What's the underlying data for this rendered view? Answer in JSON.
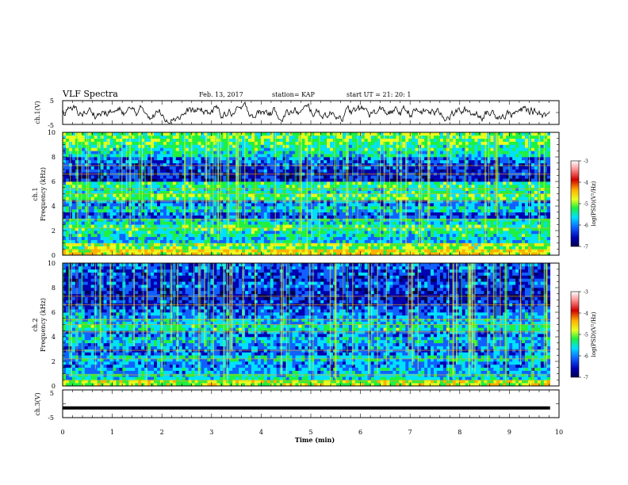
{
  "header": {
    "title": "VLF Spectra",
    "date": "Feb. 13, 2017",
    "station": "station= KAP",
    "start_ut": "start  UT =   21: 20: 1"
  },
  "chart_data": [
    {
      "type": "line",
      "name": "ch1-waveform",
      "ylabel": "ch.1(V)",
      "ylim": [
        -5,
        5
      ],
      "ytick_labels": [
        "-5",
        "5"
      ],
      "xlim": [
        0,
        10
      ],
      "approx_level_V": 0,
      "approx_amplitude_V": 2.5
    },
    {
      "type": "heatmap",
      "name": "ch1-spectrogram",
      "ylabel": "ch.1\nFrequency (kHz)",
      "ylim": [
        0,
        10
      ],
      "ytick_labels": [
        "0",
        "2",
        "4",
        "6",
        "8",
        "10"
      ],
      "xlim": [
        0,
        9.82
      ],
      "colorbar": {
        "label": "log(PSD)(V²/Hz)",
        "range": [
          -7,
          -3
        ],
        "tick_labels": [
          "-3",
          "-4",
          "-5",
          "-6",
          "-7"
        ],
        "colormap": [
          "#ffffff",
          "#d00000",
          "#ffb000",
          "#e8ff20",
          "#20f040",
          "#00e0ff",
          "#1060ff",
          "#0000b0",
          "#000050"
        ]
      },
      "bands_kHz_approx_logpsd": [
        [
          0.0,
          -4.4
        ],
        [
          0.5,
          -4.8
        ],
        [
          1.0,
          -5.6
        ],
        [
          1.5,
          -5.3
        ],
        [
          2.0,
          -5.1
        ],
        [
          2.5,
          -5.4
        ],
        [
          3.0,
          -6.1
        ],
        [
          3.5,
          -5.6
        ],
        [
          4.0,
          -5.9
        ],
        [
          4.5,
          -5.0
        ],
        [
          5.0,
          -5.3
        ],
        [
          5.5,
          -5.2
        ],
        [
          6.0,
          -6.4
        ],
        [
          6.5,
          -6.3
        ],
        [
          7.0,
          -6.2
        ],
        [
          7.5,
          -6.0
        ],
        [
          8.0,
          -5.4
        ],
        [
          8.5,
          -5.2
        ],
        [
          9.0,
          -5.0
        ],
        [
          9.5,
          -4.9
        ]
      ]
    },
    {
      "type": "heatmap",
      "name": "ch2-spectrogram",
      "ylabel": "ch.2\nFrequency (kHz)",
      "ylim": [
        0,
        10
      ],
      "ytick_labels": [
        "0",
        "2",
        "4",
        "6",
        "8",
        "10"
      ],
      "xlim": [
        0,
        9.82
      ],
      "colorbar": {
        "label": "log(PSD)(V²/Hz)",
        "range": [
          -7,
          -3
        ],
        "tick_labels": [
          "-3",
          "-4",
          "-5",
          "-6",
          "-7"
        ],
        "colormap": [
          "#ffffff",
          "#d00000",
          "#ffb000",
          "#e8ff20",
          "#20f040",
          "#00e0ff",
          "#1060ff",
          "#0000b0",
          "#000050"
        ]
      },
      "bands_kHz_approx_logpsd": [
        [
          0.0,
          -4.6
        ],
        [
          0.5,
          -5.4
        ],
        [
          1.0,
          -5.7
        ],
        [
          1.5,
          -5.9
        ],
        [
          2.0,
          -5.5
        ],
        [
          2.5,
          -6.0
        ],
        [
          3.0,
          -5.8
        ],
        [
          3.5,
          -5.6
        ],
        [
          4.0,
          -5.9
        ],
        [
          4.5,
          -5.3
        ],
        [
          5.0,
          -5.6
        ],
        [
          5.5,
          -5.8
        ],
        [
          6.0,
          -6.1
        ],
        [
          6.5,
          -6.3
        ],
        [
          7.0,
          -6.4
        ],
        [
          7.5,
          -6.3
        ],
        [
          8.0,
          -6.1
        ],
        [
          8.5,
          -6.3
        ],
        [
          9.0,
          -6.2
        ],
        [
          9.5,
          -6.1
        ]
      ]
    },
    {
      "type": "line",
      "name": "ch3-waveform",
      "ylabel": "ch.3(V)",
      "ylim": [
        -5,
        5
      ],
      "ytick_labels": [
        "-5",
        "5"
      ],
      "xlim": [
        0,
        10
      ],
      "constant_value_V": -1.5
    }
  ],
  "xaxis": {
    "label": "Time (min)",
    "tick_labels": [
      "0",
      "1",
      "2",
      "3",
      "4",
      "5",
      "6",
      "7",
      "8",
      "9",
      "10"
    ],
    "xlim": [
      0,
      10
    ]
  }
}
